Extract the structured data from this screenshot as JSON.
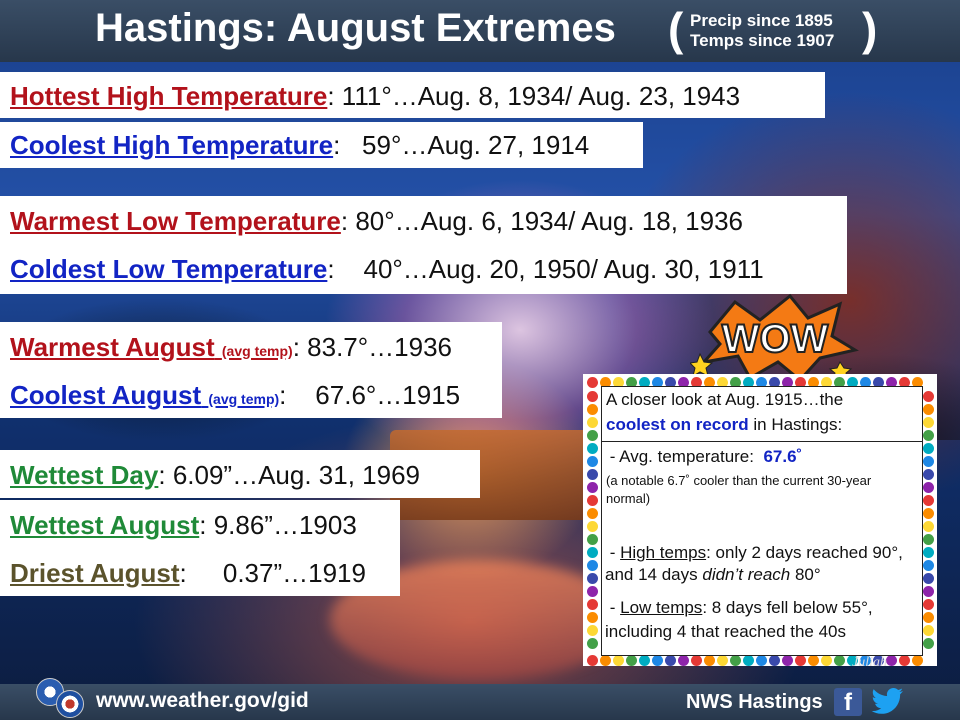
{
  "header": {
    "title": "Hastings: August Extremes",
    "open_paren": "(",
    "close_paren": ")",
    "note_line1": "Precip since 1895",
    "note_line2": "Temps since 1907"
  },
  "records": {
    "hottest_high": {
      "label": "Hottest High Temperature",
      "sep": ":",
      "value": " 111°…Aug. 8, 1934/ Aug. 23, 1943"
    },
    "coolest_high": {
      "label": "Coolest High Temperature",
      "sep": ":",
      "value": "   59°…Aug. 27, 1914"
    },
    "warmest_low": {
      "label": "Warmest Low Temperature",
      "sep": ":",
      "value": " 80°…Aug. 6, 1934/ Aug. 18, 1936"
    },
    "coldest_low": {
      "label": "Coldest Low Temperature",
      "sep": ":",
      "value": "    40°…Aug. 20, 1950/ Aug. 30, 1911"
    },
    "warmest_august": {
      "label": "Warmest August",
      "qualifier": "(avg temp)",
      "sep": ":",
      "value": " 83.7°…1936"
    },
    "coolest_august": {
      "label": "Coolest August",
      "qualifier": "(avg temp)",
      "sep": ":",
      "value": "    67.6°…1915"
    },
    "wettest_day": {
      "label": "Wettest Day",
      "sep": ":",
      "value": " 6.09”…Aug. 31, 1969"
    },
    "wettest_august": {
      "label": "Wettest August",
      "sep": ":",
      "value": " 9.86”…1903"
    },
    "driest_august": {
      "label": "Driest August",
      "sep": ":",
      "value": "     0.37”…1919"
    }
  },
  "closer_look": {
    "heading_line1": "A closer look at Aug. 1915…the",
    "heading_highlight": "coolest on record",
    "heading_line2_rest": " in Hastings:",
    "avg_prefix": " - Avg. temperature:  ",
    "avg_value": "67.6˚",
    "avg_note": "(a notable 6.7˚ cooler than the current 30-year normal)",
    "high_dash": " - ",
    "high_label": "High temps",
    "high_text_a": ":  only 2 days reached 90°, and 14 days ",
    "high_italic": "didn’t reach",
    "high_text_b": " 80°",
    "low_dash": " - ",
    "low_label": "Low temps",
    "low_text": ": 8 days fell below 55°, including 4 that reached the 40s"
  },
  "wow_graphic": {
    "text": "WOW",
    "icon": "wow-burst-icon"
  },
  "credit": "Juliah",
  "footer": {
    "url": "www.weather.gov/gid",
    "org": "NWS Hastings",
    "facebook_icon": "facebook-icon",
    "twitter_icon": "twitter-icon"
  },
  "colors": {
    "red_label": "#b2121b",
    "blue_label": "#1224c4",
    "green_label": "#1f8a38",
    "olive_label": "#5b532c",
    "header_bg": "#2f4157"
  }
}
